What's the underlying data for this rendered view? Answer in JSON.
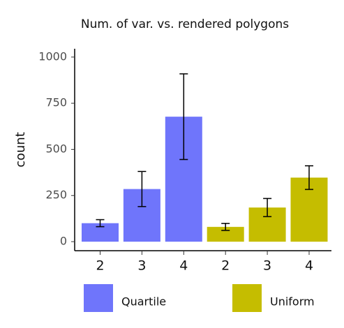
{
  "chart_data": {
    "type": "bar",
    "title": "Num. of var. vs. rendered polygons",
    "y_label": "count",
    "categories": [
      "2",
      "3",
      "4",
      "2",
      "3",
      "4"
    ],
    "series": [
      {
        "name": "Quartile",
        "color": "#6f75fb",
        "values": [
          100,
          285,
          677,
          null,
          null,
          null
        ],
        "errors": [
          19,
          95,
          232,
          null,
          null,
          null
        ]
      },
      {
        "name": "Uniform",
        "color": "#c5bd00",
        "values": [
          null,
          null,
          null,
          80,
          185,
          347
        ],
        "errors": [
          null,
          null,
          null,
          19,
          49,
          64
        ]
      }
    ],
    "ylim": [
      -49,
      1045
    ],
    "yticks": [
      0,
      250,
      500,
      750,
      1000
    ],
    "grid": false,
    "legend": "bottom"
  }
}
